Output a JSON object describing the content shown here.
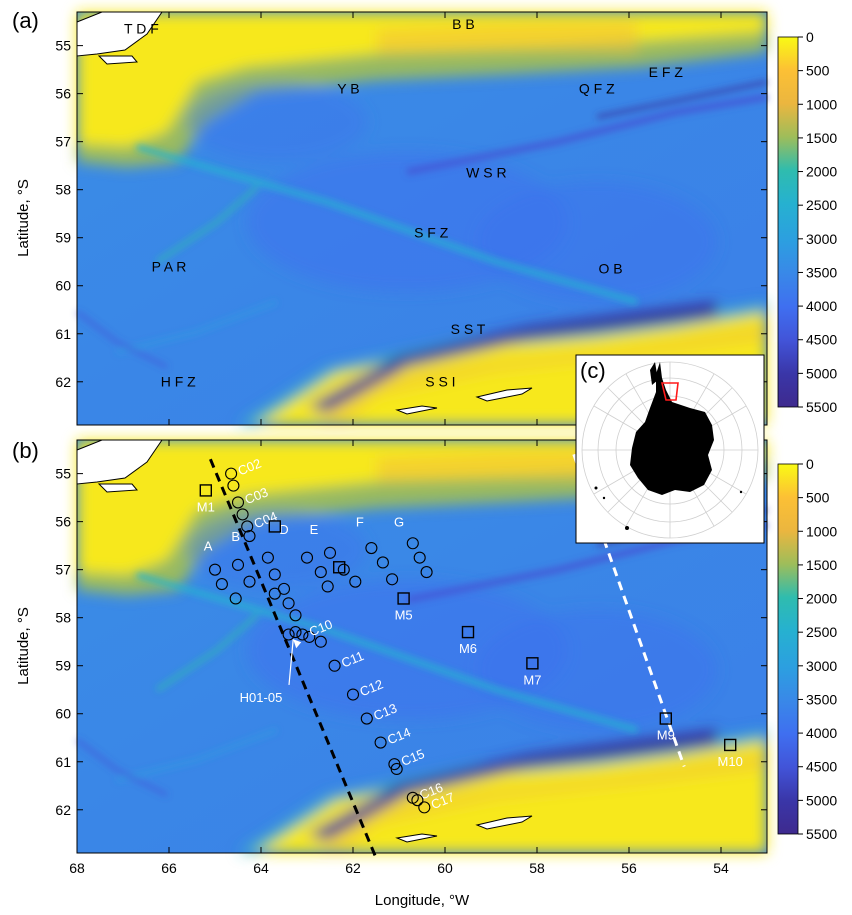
{
  "panels": {
    "a": "(a)",
    "b": "(b)",
    "c": "(c)"
  },
  "axes": {
    "xlabel": "Longitude, °W",
    "ylabel_a": "Latitude, °S",
    "ylabel_b": "Latitude, °S",
    "x_ticks": [
      "68",
      "66",
      "64",
      "62",
      "60",
      "58",
      "56",
      "54"
    ],
    "y_ticks": [
      "55",
      "56",
      "57",
      "58",
      "59",
      "60",
      "61",
      "62"
    ],
    "x_values": [
      68,
      66,
      64,
      62,
      60,
      58,
      56,
      54
    ],
    "y_values": [
      55,
      56,
      57,
      58,
      59,
      60,
      61,
      62
    ],
    "lon_range": [
      68,
      53
    ],
    "lat_range": [
      54.3,
      62.9
    ]
  },
  "colorbar": {
    "labels": [
      "0",
      "500",
      "1000",
      "1500",
      "2000",
      "2500",
      "3000",
      "3500",
      "4000",
      "4500",
      "5000",
      "5500"
    ],
    "values": [
      0,
      500,
      1000,
      1500,
      2000,
      2500,
      3000,
      3500,
      4000,
      4500,
      5000,
      5500
    ],
    "colors": [
      "#f9fa14",
      "#fcc035",
      "#ebb63f",
      "#9ebd5a",
      "#2fbcae",
      "#26b1d0",
      "#2c9fe0",
      "#3988e8",
      "#3f6ff0",
      "#4254d8",
      "#3a36a8",
      "#3e2a8e"
    ]
  },
  "features": [
    {
      "label": "T D F",
      "lon": 66.6,
      "lat": 54.75
    },
    {
      "label": "B B",
      "lon": 59.6,
      "lat": 54.65
    },
    {
      "label": "E F Z",
      "lon": 55.2,
      "lat": 55.65
    },
    {
      "label": "Y B",
      "lon": 62.1,
      "lat": 56.0
    },
    {
      "label": "Q F Z",
      "lon": 56.7,
      "lat": 56.0
    },
    {
      "label": "W S R",
      "lon": 59.1,
      "lat": 57.75
    },
    {
      "label": "S F Z",
      "lon": 60.3,
      "lat": 59.0
    },
    {
      "label": "P A R",
      "lon": 66.0,
      "lat": 59.7
    },
    {
      "label": "O B",
      "lon": 56.4,
      "lat": 59.75
    },
    {
      "label": "S S T",
      "lon": 59.5,
      "lat": 61.0
    },
    {
      "label": "H F Z",
      "lon": 65.8,
      "lat": 62.1
    },
    {
      "label": "S S I",
      "lon": 60.1,
      "lat": 62.1
    }
  ],
  "moorings": [
    {
      "name": "M1",
      "lon": 65.2,
      "lat": 55.35
    },
    {
      "name": "",
      "lon": 63.7,
      "lat": 56.1
    },
    {
      "name": "",
      "lon": 62.3,
      "lat": 56.95
    },
    {
      "name": "M5",
      "lon": 60.9,
      "lat": 57.6
    },
    {
      "name": "M6",
      "lon": 59.5,
      "lat": 58.3
    },
    {
      "name": "M7",
      "lon": 58.1,
      "lat": 58.95
    },
    {
      "name": "M9",
      "lon": 55.2,
      "lat": 60.1
    },
    {
      "name": "M10",
      "lon": 53.8,
      "lat": 60.65
    }
  ],
  "c_stations": [
    {
      "name": "C02",
      "lon": 64.65,
      "lat": 55.0
    },
    {
      "name": "",
      "lon": 64.6,
      "lat": 55.25
    },
    {
      "name": "C03",
      "lon": 64.5,
      "lat": 55.6
    },
    {
      "name": "",
      "lon": 64.4,
      "lat": 55.85
    },
    {
      "name": "C04",
      "lon": 64.3,
      "lat": 56.1
    },
    {
      "name": "",
      "lon": 64.25,
      "lat": 56.3
    },
    {
      "name": "C10",
      "lon": 63.1,
      "lat": 58.35
    },
    {
      "name": "C11",
      "lon": 62.4,
      "lat": 59.0
    },
    {
      "name": "C12",
      "lon": 62.0,
      "lat": 59.6
    },
    {
      "name": "C13",
      "lon": 61.7,
      "lat": 60.1
    },
    {
      "name": "C14",
      "lon": 61.4,
      "lat": 60.6
    },
    {
      "name": "C15",
      "lon": 61.1,
      "lat": 61.05
    },
    {
      "name": "",
      "lon": 61.05,
      "lat": 61.15
    },
    {
      "name": "C16",
      "lon": 60.7,
      "lat": 61.75
    },
    {
      "name": "",
      "lon": 60.6,
      "lat": 61.8
    },
    {
      "name": "C17",
      "lon": 60.45,
      "lat": 61.95
    }
  ],
  "section_labels": [
    {
      "label": "A",
      "lon": 65.15,
      "lat": 56.5
    },
    {
      "label": "B",
      "lon": 64.55,
      "lat": 56.3
    },
    {
      "label": "D",
      "lon": 63.5,
      "lat": 56.15
    },
    {
      "label": "E",
      "lon": 62.85,
      "lat": 56.15
    },
    {
      "label": "F",
      "lon": 61.85,
      "lat": 56.0
    },
    {
      "label": "G",
      "lon": 61.0,
      "lat": 56.0
    }
  ],
  "section_stations": [
    {
      "lon": 65.0,
      "lat": 57.0
    },
    {
      "lon": 64.85,
      "lat": 57.3
    },
    {
      "lon": 64.5,
      "lat": 56.9
    },
    {
      "lon": 64.25,
      "lat": 57.25
    },
    {
      "lon": 64.55,
      "lat": 57.6
    },
    {
      "lon": 63.85,
      "lat": 56.75
    },
    {
      "lon": 63.7,
      "lat": 57.1
    },
    {
      "lon": 63.5,
      "lat": 57.4
    },
    {
      "lon": 63.4,
      "lat": 57.7
    },
    {
      "lon": 63.25,
      "lat": 57.95
    },
    {
      "lon": 63.7,
      "lat": 57.5
    },
    {
      "lon": 63.0,
      "lat": 56.75
    },
    {
      "lon": 62.7,
      "lat": 57.05
    },
    {
      "lon": 62.55,
      "lat": 57.35
    },
    {
      "lon": 62.5,
      "lat": 56.65
    },
    {
      "lon": 62.2,
      "lat": 57.0
    },
    {
      "lon": 61.95,
      "lat": 57.25
    },
    {
      "lon": 61.6,
      "lat": 56.55
    },
    {
      "lon": 61.35,
      "lat": 56.85
    },
    {
      "lon": 61.15,
      "lat": 57.2
    },
    {
      "lon": 60.7,
      "lat": 56.45
    },
    {
      "lon": 60.55,
      "lat": 56.75
    },
    {
      "lon": 60.4,
      "lat": 57.05
    },
    {
      "lon": 63.25,
      "lat": 58.3
    },
    {
      "lon": 63.4,
      "lat": 58.35
    },
    {
      "lon": 62.95,
      "lat": 58.4
    },
    {
      "lon": 62.7,
      "lat": 58.5
    }
  ],
  "annotation": {
    "label": "H01-05",
    "lon": 64.0,
    "lat": 59.65,
    "arrow_to_lon": 63.3,
    "arrow_to_lat": 58.45
  },
  "lines": {
    "black": [
      {
        "lon": 65.1,
        "lat": 54.7
      },
      {
        "lon": 61.5,
        "lat": 63.0
      }
    ],
    "white": [
      {
        "lon": 57.2,
        "lat": 54.6
      },
      {
        "lon": 54.8,
        "lat": 61.1
      }
    ]
  }
}
